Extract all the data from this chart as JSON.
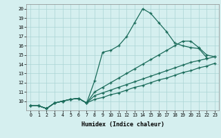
{
  "xlabel": "Humidex (Indice chaleur)",
  "bg_color": "#d5efef",
  "line_color": "#1a6b5a",
  "grid_color": "#aad4d4",
  "xlim": [
    -0.5,
    23.5
  ],
  "ylim": [
    9,
    20.5
  ],
  "xticks": [
    0,
    1,
    2,
    3,
    4,
    5,
    6,
    7,
    8,
    9,
    10,
    11,
    12,
    13,
    14,
    15,
    16,
    17,
    18,
    19,
    20,
    21,
    22,
    23
  ],
  "yticks": [
    10,
    11,
    12,
    13,
    14,
    15,
    16,
    17,
    18,
    19,
    20
  ],
  "line1_x": [
    0,
    1,
    2,
    3,
    4,
    5,
    6,
    7,
    8,
    9,
    10,
    11,
    12,
    13,
    14,
    15,
    16,
    17,
    18,
    19,
    20,
    21,
    22
  ],
  "line1_y": [
    9.5,
    9.5,
    9.2,
    9.8,
    10.0,
    10.2,
    10.3,
    9.8,
    12.2,
    15.3,
    15.5,
    16.0,
    17.0,
    18.5,
    20.0,
    19.5,
    18.5,
    17.5,
    16.3,
    16.0,
    15.8,
    15.7,
    14.7
  ],
  "line2_x": [
    0,
    1,
    2,
    3,
    4,
    5,
    6,
    7,
    8,
    9,
    10,
    11,
    12,
    13,
    14,
    15,
    16,
    17,
    18,
    19,
    20,
    21,
    22,
    23
  ],
  "line2_y": [
    9.5,
    9.5,
    9.2,
    9.8,
    10.0,
    10.2,
    10.3,
    9.8,
    11.0,
    11.5,
    12.0,
    12.5,
    13.0,
    13.5,
    14.0,
    14.5,
    15.0,
    15.5,
    16.0,
    16.5,
    16.5,
    15.8,
    15.0,
    14.8
  ],
  "line3_x": [
    0,
    1,
    2,
    3,
    4,
    5,
    6,
    7,
    8,
    9,
    10,
    11,
    12,
    13,
    14,
    15,
    16,
    17,
    18,
    19,
    20,
    21,
    22,
    23
  ],
  "line3_y": [
    9.5,
    9.5,
    9.2,
    9.8,
    10.0,
    10.2,
    10.3,
    9.8,
    10.6,
    10.9,
    11.2,
    11.5,
    11.8,
    12.1,
    12.4,
    12.7,
    13.0,
    13.3,
    13.6,
    13.9,
    14.2,
    14.4,
    14.6,
    14.8
  ],
  "line4_x": [
    0,
    1,
    2,
    3,
    4,
    5,
    6,
    7,
    8,
    9,
    10,
    11,
    12,
    13,
    14,
    15,
    16,
    17,
    18,
    19,
    20,
    21,
    22,
    23
  ],
  "line4_y": [
    9.5,
    9.5,
    9.2,
    9.8,
    10.0,
    10.2,
    10.3,
    9.8,
    10.2,
    10.4,
    10.7,
    10.9,
    11.2,
    11.5,
    11.7,
    12.0,
    12.3,
    12.5,
    12.8,
    13.1,
    13.3,
    13.6,
    13.8,
    14.1
  ]
}
